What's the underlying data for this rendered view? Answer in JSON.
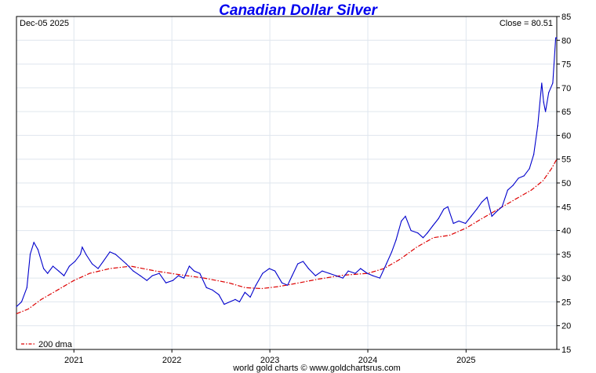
{
  "chart_data": {
    "type": "line",
    "title": "Canadian Dollar Silver",
    "date_label": "Dec-05  2025",
    "close_label": "Close = 80.51",
    "footer": "world gold charts © www.goldchartsrus.com",
    "ylim": [
      15,
      85
    ],
    "y_ticks": [
      15,
      20,
      25,
      30,
      35,
      40,
      45,
      50,
      55,
      60,
      65,
      70,
      75,
      80,
      85
    ],
    "x_range": [
      "2020-06-01",
      "2025-12-05"
    ],
    "x_ticks": [
      "2021",
      "2022",
      "2023",
      "2024",
      "2025"
    ],
    "grid": true,
    "legend_position": "bottom-left",
    "colors": {
      "price": "#0000cc",
      "dma": "#dd0000",
      "title": "#0000ee",
      "grid": "#dfe6ee"
    },
    "series": [
      {
        "style": "solid",
        "x": [
          "2020-06-01",
          "2020-06-20",
          "2020-07-10",
          "2020-07-22",
          "2020-08-05",
          "2020-08-20",
          "2020-09-10",
          "2020-09-25",
          "2020-10-15",
          "2020-11-05",
          "2020-11-25",
          "2020-12-15",
          "2021-01-05",
          "2021-01-25",
          "2021-02-01",
          "2021-02-15",
          "2021-03-10",
          "2021-04-01",
          "2021-04-20",
          "2021-05-15",
          "2021-06-05",
          "2021-06-25",
          "2021-07-15",
          "2021-08-10",
          "2021-09-05",
          "2021-09-30",
          "2021-10-20",
          "2021-11-15",
          "2021-12-10",
          "2022-01-05",
          "2022-01-25",
          "2022-02-15",
          "2022-03-07",
          "2022-03-25",
          "2022-04-15",
          "2022-05-10",
          "2022-06-01",
          "2022-06-25",
          "2022-07-15",
          "2022-08-05",
          "2022-08-25",
          "2022-09-10",
          "2022-09-30",
          "2022-10-20",
          "2022-11-10",
          "2022-12-05",
          "2022-12-30",
          "2023-01-20",
          "2023-02-15",
          "2023-03-08",
          "2023-03-25",
          "2023-04-15",
          "2023-05-05",
          "2023-05-25",
          "2023-06-20",
          "2023-07-15",
          "2023-08-10",
          "2023-09-05",
          "2023-09-30",
          "2023-10-20",
          "2023-11-15",
          "2023-12-05",
          "2023-12-30",
          "2024-01-20",
          "2024-02-15",
          "2024-03-10",
          "2024-03-30",
          "2024-04-15",
          "2024-05-05",
          "2024-05-20",
          "2024-06-10",
          "2024-07-05",
          "2024-07-25",
          "2024-08-10",
          "2024-08-30",
          "2024-09-20",
          "2024-10-10",
          "2024-10-25",
          "2024-11-15",
          "2024-12-05",
          "2024-12-30",
          "2025-01-20",
          "2025-02-10",
          "2025-03-01",
          "2025-03-20",
          "2025-04-07",
          "2025-04-25",
          "2025-05-15",
          "2025-06-05",
          "2025-06-25",
          "2025-07-15",
          "2025-08-05",
          "2025-08-25",
          "2025-09-10",
          "2025-09-25",
          "2025-10-10",
          "2025-10-17",
          "2025-10-24",
          "2025-11-05",
          "2025-11-20",
          "2025-12-01",
          "2025-12-05"
        ],
        "values": [
          24.0,
          25.0,
          28.0,
          35.0,
          37.5,
          36.0,
          32.0,
          31.0,
          32.5,
          31.5,
          30.5,
          32.5,
          33.5,
          35.0,
          36.5,
          35.0,
          33.0,
          32.0,
          33.5,
          35.5,
          35.0,
          34.0,
          33.0,
          31.5,
          30.5,
          29.5,
          30.5,
          31.0,
          29.0,
          29.5,
          30.5,
          30.0,
          32.5,
          31.5,
          31.0,
          28.0,
          27.5,
          26.5,
          24.5,
          25.0,
          25.5,
          25.0,
          27.0,
          26.0,
          28.5,
          31.0,
          32.0,
          31.5,
          29.0,
          28.5,
          30.5,
          33.0,
          33.5,
          32.0,
          30.5,
          31.5,
          31.0,
          30.5,
          30.0,
          31.5,
          31.0,
          32.0,
          31.0,
          30.5,
          30.0,
          33.0,
          35.5,
          38.0,
          42.0,
          43.0,
          40.0,
          39.5,
          38.5,
          39.5,
          41.0,
          42.5,
          44.5,
          45.0,
          41.5,
          42.0,
          41.5,
          43.0,
          44.5,
          46.0,
          47.0,
          43.0,
          44.0,
          45.0,
          48.5,
          49.5,
          51.0,
          51.5,
          53.0,
          56.0,
          62.0,
          71.0,
          67.0,
          65.0,
          69.0,
          71.0,
          80.5,
          80.51
        ]
      },
      {
        "name": "200 dma",
        "style": "dash-dot",
        "x": [
          "2020-06-01",
          "2020-07-15",
          "2020-09-01",
          "2020-11-01",
          "2021-01-01",
          "2021-03-01",
          "2021-05-15",
          "2021-08-01",
          "2021-11-01",
          "2022-02-01",
          "2022-05-01",
          "2022-08-01",
          "2022-10-01",
          "2022-12-01",
          "2023-02-01",
          "2023-04-01",
          "2023-07-01",
          "2023-10-01",
          "2024-01-01",
          "2024-03-01",
          "2024-05-01",
          "2024-07-01",
          "2024-09-01",
          "2024-11-01",
          "2025-01-01",
          "2025-03-01",
          "2025-05-01",
          "2025-07-01",
          "2025-09-01",
          "2025-10-15",
          "2025-11-15",
          "2025-12-05"
        ],
        "values": [
          22.5,
          23.5,
          25.5,
          27.5,
          29.5,
          31.0,
          32.0,
          32.5,
          31.5,
          30.7,
          30.0,
          29.0,
          28.0,
          27.8,
          28.2,
          28.8,
          29.8,
          30.6,
          31.0,
          32.0,
          34.0,
          36.5,
          38.5,
          39.0,
          40.5,
          42.5,
          44.5,
          46.5,
          48.5,
          50.5,
          53.0,
          55.0
        ]
      }
    ]
  }
}
